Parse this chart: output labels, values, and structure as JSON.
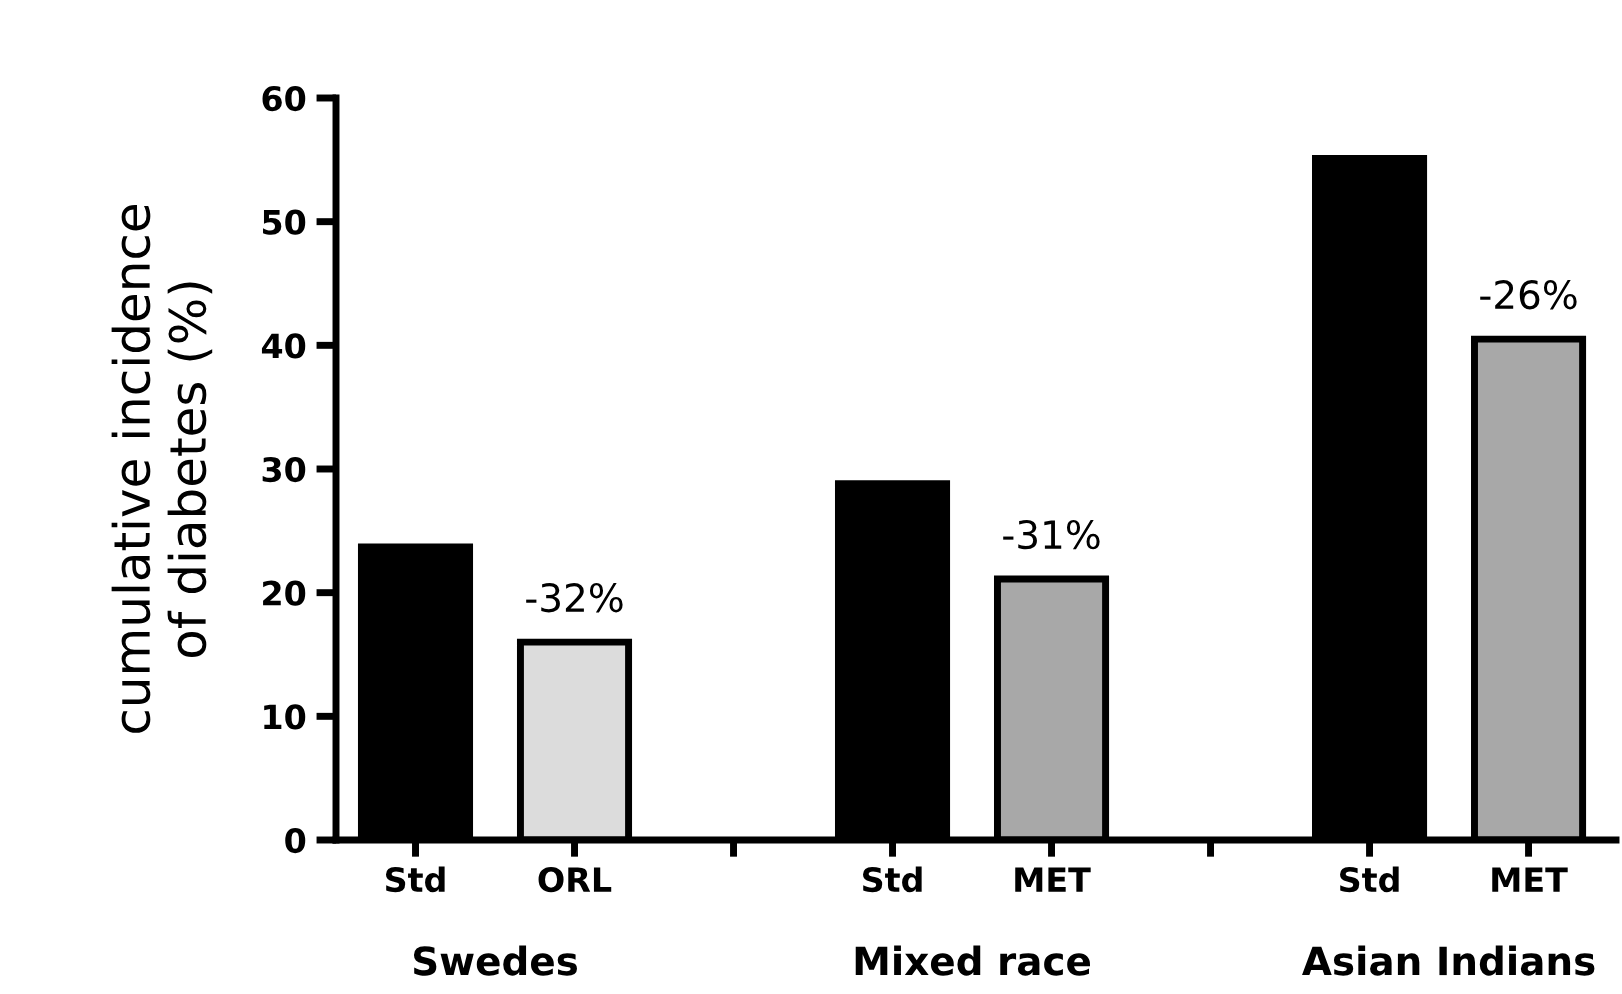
{
  "chart_data": {
    "type": "bar",
    "ylabel": "cumulative incidence\nof diabetes (%)",
    "categories": [
      "Std",
      "ORL",
      null,
      "Std",
      "MET",
      null,
      "Std",
      "MET"
    ],
    "values": [
      23.7,
      16.0,
      null,
      28.8,
      21.1,
      null,
      55.1,
      40.5
    ],
    "colors": [
      "#000000",
      "#dcdcdc",
      "#ffffff",
      "#000000",
      "#a8a8a8",
      "#ffffff",
      "#000000",
      "#a8a8a8"
    ],
    "ylim": [
      0,
      60
    ],
    "yticks": [
      0,
      10,
      20,
      30,
      40,
      50,
      60
    ],
    "grid": false,
    "legend": false,
    "annotations": [
      "-32%",
      "-31%",
      "-26%",
      "Swedes",
      "Mixed race",
      "Asian Indians"
    ]
  }
}
